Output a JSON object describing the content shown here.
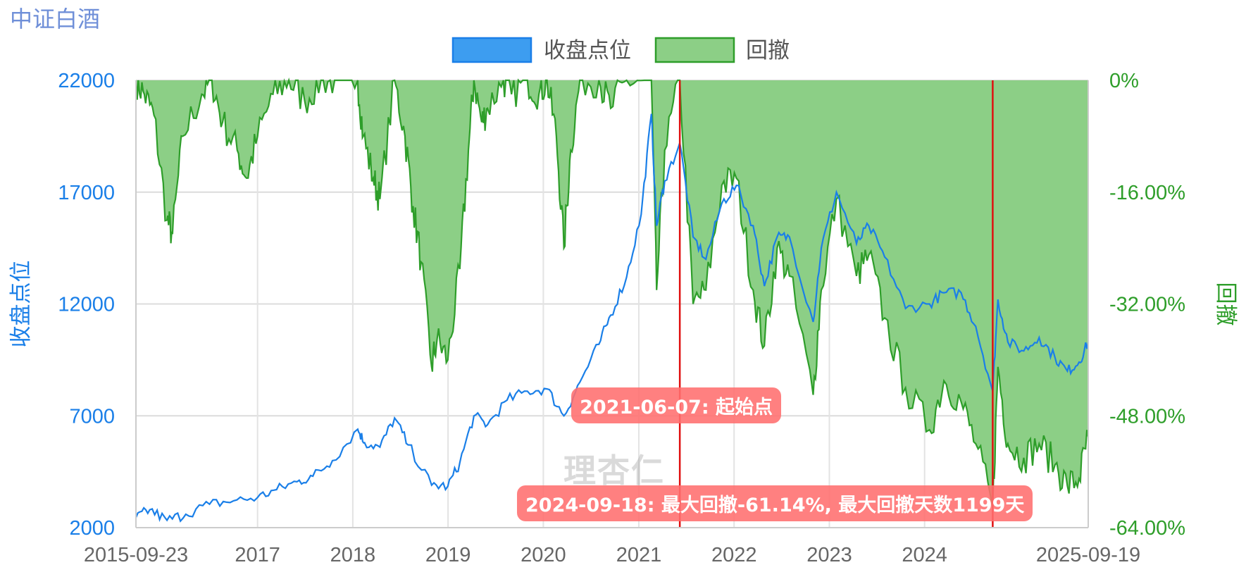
{
  "title": "中证白酒",
  "legend": {
    "price_label": "收盘点位",
    "drawdown_label": "回撤"
  },
  "watermark": "理杏仁",
  "colors": {
    "price": "#1a7fe8",
    "drawdown_line": "#2e9e2a",
    "drawdown_fill": "#8ccf86",
    "marker": "#e01010",
    "annotation": "#ff6e6e"
  },
  "chart_data": {
    "type": "line",
    "x_start": "2015-09-23",
    "x_end": "2025-09-19",
    "x_tick_labels": [
      "2015-09-23",
      "2017",
      "2018",
      "2019",
      "2020",
      "2021",
      "2022",
      "2023",
      "2024",
      "2025-09-19"
    ],
    "y_left": {
      "label": "收盘点位",
      "ticks": [
        "22000",
        "17000",
        "12000",
        "7000",
        "2000"
      ],
      "range": [
        2000,
        22000
      ]
    },
    "y_right": {
      "label": "回撤",
      "ticks": [
        "0%",
        "-16.00%",
        "-32.00%",
        "-48.00%",
        "-64.00%"
      ],
      "range": [
        -64,
        0
      ]
    },
    "series": [
      {
        "name": "收盘点位",
        "axis": "left",
        "points": [
          [
            "2015-09-23",
            2450
          ],
          [
            "2015-11-15",
            2800
          ],
          [
            "2016-01-20",
            2330
          ],
          [
            "2016-04-01",
            2600
          ],
          [
            "2016-07-01",
            3050
          ],
          [
            "2016-10-01",
            3200
          ],
          [
            "2017-01-01",
            3350
          ],
          [
            "2017-03-15",
            3700
          ],
          [
            "2017-06-01",
            4050
          ],
          [
            "2017-08-01",
            4300
          ],
          [
            "2017-10-15",
            5000
          ],
          [
            "2018-01-20",
            6400
          ],
          [
            "2018-02-15",
            5800
          ],
          [
            "2018-04-15",
            5600
          ],
          [
            "2018-06-10",
            6900
          ],
          [
            "2018-08-01",
            5700
          ],
          [
            "2018-10-30",
            3900
          ],
          [
            "2018-12-31",
            3850
          ],
          [
            "2019-02-15",
            4900
          ],
          [
            "2019-04-10",
            7000
          ],
          [
            "2019-06-01",
            6600
          ],
          [
            "2019-08-15",
            7700
          ],
          [
            "2019-11-01",
            8100
          ],
          [
            "2020-01-15",
            8200
          ],
          [
            "2020-03-20",
            7000
          ],
          [
            "2020-05-20",
            8500
          ],
          [
            "2020-08-01",
            10200
          ],
          [
            "2020-09-15",
            11500
          ],
          [
            "2020-11-15",
            13200
          ],
          [
            "2021-01-10",
            16000
          ],
          [
            "2021-02-18",
            20500
          ],
          [
            "2021-03-10",
            15500
          ],
          [
            "2021-04-10",
            17500
          ],
          [
            "2021-06-07",
            19200
          ],
          [
            "2021-07-28",
            15000
          ],
          [
            "2021-09-15",
            14000
          ],
          [
            "2021-11-15",
            16500
          ],
          [
            "2022-01-10",
            17300
          ],
          [
            "2022-03-15",
            15500
          ],
          [
            "2022-04-27",
            12800
          ],
          [
            "2022-06-15",
            15000
          ],
          [
            "2022-08-01",
            15000
          ],
          [
            "2022-10-31",
            11200
          ],
          [
            "2022-12-01",
            14500
          ],
          [
            "2023-01-28",
            17000
          ],
          [
            "2023-04-15",
            14700
          ],
          [
            "2023-06-01",
            15500
          ],
          [
            "2023-08-01",
            14100
          ],
          [
            "2023-10-20",
            11800
          ],
          [
            "2024-01-20",
            12000
          ],
          [
            "2024-03-15",
            12500
          ],
          [
            "2024-05-20",
            12500
          ],
          [
            "2024-07-15",
            11000
          ],
          [
            "2024-09-18",
            8100
          ],
          [
            "2024-10-08",
            12200
          ],
          [
            "2024-11-15",
            10300
          ],
          [
            "2025-01-15",
            9900
          ],
          [
            "2025-03-15",
            10500
          ],
          [
            "2025-05-15",
            9600
          ],
          [
            "2025-07-01",
            9000
          ],
          [
            "2025-08-15",
            9400
          ],
          [
            "2025-09-19",
            10300
          ]
        ]
      },
      {
        "name": "回撤",
        "axis": "right",
        "points": [
          [
            "2015-09-23",
            0
          ],
          [
            "2015-10-25",
            -2
          ],
          [
            "2015-12-01",
            -5
          ],
          [
            "2016-01-20",
            -20
          ],
          [
            "2016-02-10",
            -22
          ],
          [
            "2016-03-20",
            -8
          ],
          [
            "2016-06-01",
            -2
          ],
          [
            "2016-07-10",
            0
          ],
          [
            "2016-08-20",
            -6
          ],
          [
            "2016-10-15",
            -10
          ],
          [
            "2016-11-20",
            -14
          ],
          [
            "2017-01-01",
            -8
          ],
          [
            "2017-03-01",
            -2
          ],
          [
            "2017-05-01",
            0
          ],
          [
            "2017-07-01",
            -3
          ],
          [
            "2017-09-01",
            0
          ],
          [
            "2017-11-01",
            0
          ],
          [
            "2018-01-20",
            0
          ],
          [
            "2018-02-10",
            -8
          ],
          [
            "2018-03-20",
            -14
          ],
          [
            "2018-04-15",
            -17
          ],
          [
            "2018-06-10",
            0
          ],
          [
            "2018-07-20",
            -8
          ],
          [
            "2018-08-20",
            -18
          ],
          [
            "2018-09-20",
            -26
          ],
          [
            "2018-10-30",
            -41
          ],
          [
            "2018-11-20",
            -37
          ],
          [
            "2018-12-31",
            -40
          ],
          [
            "2019-02-15",
            -27
          ],
          [
            "2019-03-20",
            -10
          ],
          [
            "2019-04-10",
            0
          ],
          [
            "2019-05-10",
            -6
          ],
          [
            "2019-06-01",
            -4
          ],
          [
            "2019-08-01",
            0
          ],
          [
            "2019-09-01",
            -2
          ],
          [
            "2019-11-01",
            0
          ],
          [
            "2019-12-15",
            -2
          ],
          [
            "2020-01-15",
            0
          ],
          [
            "2020-02-20",
            -8
          ],
          [
            "2020-03-20",
            -24
          ],
          [
            "2020-04-15",
            -10
          ],
          [
            "2020-05-20",
            0
          ],
          [
            "2020-08-01",
            0
          ],
          [
            "2020-09-15",
            -4
          ],
          [
            "2020-11-15",
            0
          ],
          [
            "2021-02-18",
            0
          ],
          [
            "2021-03-10",
            -30
          ],
          [
            "2021-04-10",
            -10
          ],
          [
            "2021-06-07",
            0
          ],
          [
            "2021-07-28",
            -32
          ],
          [
            "2021-09-15",
            -30
          ],
          [
            "2021-11-15",
            -15
          ],
          [
            "2022-01-10",
            -14
          ],
          [
            "2022-03-15",
            -30
          ],
          [
            "2022-04-27",
            -38
          ],
          [
            "2022-06-15",
            -24
          ],
          [
            "2022-08-01",
            -28
          ],
          [
            "2022-10-31",
            -45
          ],
          [
            "2022-12-01",
            -30
          ],
          [
            "2023-01-28",
            -17
          ],
          [
            "2023-04-15",
            -28
          ],
          [
            "2023-06-01",
            -25
          ],
          [
            "2023-08-01",
            -34
          ],
          [
            "2023-10-20",
            -44
          ],
          [
            "2024-01-20",
            -50
          ],
          [
            "2024-03-15",
            -43
          ],
          [
            "2024-05-20",
            -46
          ],
          [
            "2024-07-15",
            -52
          ],
          [
            "2024-09-18",
            -61.14
          ],
          [
            "2024-10-08",
            -41
          ],
          [
            "2024-11-15",
            -52
          ],
          [
            "2025-01-15",
            -54
          ],
          [
            "2025-03-15",
            -52
          ],
          [
            "2025-05-15",
            -55
          ],
          [
            "2025-07-01",
            -58
          ],
          [
            "2025-08-15",
            -57
          ],
          [
            "2025-09-19",
            -51
          ]
        ]
      }
    ],
    "markers": [
      {
        "date": "2021-06-07"
      },
      {
        "date": "2024-09-18"
      }
    ],
    "annotations": [
      {
        "date": "2021-06-07",
        "text": "2021-06-07: 起始点"
      },
      {
        "date": "2024-09-18",
        "text": "2024-09-18: 最大回撤-61.14%, 最大回撤天数1199天"
      }
    ],
    "grid": true,
    "legend_position": "top-center"
  }
}
